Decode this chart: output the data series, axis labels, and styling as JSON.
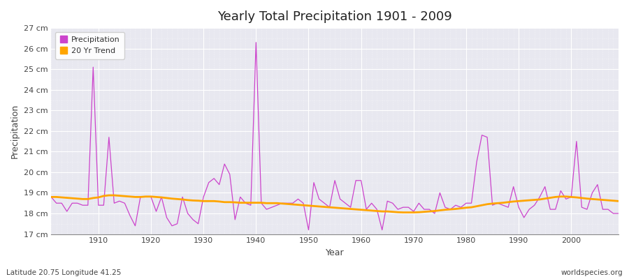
{
  "title": "Yearly Total Precipitation 1901 - 2009",
  "xlabel": "Year",
  "ylabel": "Precipitation",
  "subtitle_left": "Latitude 20.75 Longitude 41.25",
  "subtitle_right": "worldspecies.org",
  "ylim": [
    17,
    27
  ],
  "yticks": [
    17,
    18,
    19,
    20,
    21,
    22,
    23,
    24,
    25,
    26,
    27
  ],
  "ytick_labels": [
    "17 cm",
    "18 cm",
    "19 cm",
    "20 cm",
    "21 cm",
    "22 cm",
    "23 cm",
    "24 cm",
    "25 cm",
    "26 cm",
    "27 cm"
  ],
  "xlim": [
    1901,
    2009
  ],
  "xticks": [
    1910,
    1920,
    1930,
    1940,
    1950,
    1960,
    1970,
    1980,
    1990,
    2000
  ],
  "precip_color": "#cc44cc",
  "trend_color": "#ffa500",
  "fig_bg_color": "#ffffff",
  "plot_bg_color": "#e8e8f0",
  "legend_labels": [
    "Precipitation",
    "20 Yr Trend"
  ],
  "years": [
    1901,
    1902,
    1903,
    1904,
    1905,
    1906,
    1907,
    1908,
    1909,
    1910,
    1911,
    1912,
    1913,
    1914,
    1915,
    1916,
    1917,
    1918,
    1919,
    1920,
    1921,
    1922,
    1923,
    1924,
    1925,
    1926,
    1927,
    1928,
    1929,
    1930,
    1931,
    1932,
    1933,
    1934,
    1935,
    1936,
    1937,
    1938,
    1939,
    1940,
    1941,
    1942,
    1943,
    1944,
    1945,
    1946,
    1947,
    1948,
    1949,
    1950,
    1951,
    1952,
    1953,
    1954,
    1955,
    1956,
    1957,
    1958,
    1959,
    1960,
    1961,
    1962,
    1963,
    1964,
    1965,
    1966,
    1967,
    1968,
    1969,
    1970,
    1971,
    1972,
    1973,
    1974,
    1975,
    1976,
    1977,
    1978,
    1979,
    1980,
    1981,
    1982,
    1983,
    1984,
    1985,
    1986,
    1987,
    1988,
    1989,
    1990,
    1991,
    1992,
    1993,
    1994,
    1995,
    1996,
    1997,
    1998,
    1999,
    2000,
    2001,
    2002,
    2003,
    2004,
    2005,
    2006,
    2007,
    2008,
    2009
  ],
  "precip": [
    18.8,
    18.5,
    18.5,
    18.1,
    18.5,
    18.5,
    18.4,
    18.4,
    25.1,
    18.4,
    18.4,
    21.7,
    18.5,
    18.6,
    18.5,
    17.9,
    17.4,
    18.8,
    18.8,
    18.8,
    18.1,
    18.8,
    17.8,
    17.4,
    17.5,
    18.8,
    18.0,
    17.7,
    17.5,
    18.8,
    19.5,
    19.7,
    19.4,
    20.4,
    19.9,
    17.7,
    18.8,
    18.5,
    18.4,
    26.3,
    18.5,
    18.2,
    18.3,
    18.4,
    18.5,
    18.5,
    18.5,
    18.7,
    18.5,
    17.2,
    19.5,
    18.7,
    18.5,
    18.3,
    19.6,
    18.7,
    18.5,
    18.3,
    19.6,
    19.6,
    18.2,
    18.5,
    18.2,
    17.2,
    18.6,
    18.5,
    18.2,
    18.3,
    18.3,
    18.1,
    18.5,
    18.2,
    18.2,
    18.0,
    19.0,
    18.3,
    18.2,
    18.4,
    18.3,
    18.5,
    18.5,
    20.5,
    21.8,
    21.7,
    18.4,
    18.5,
    18.4,
    18.3,
    19.3,
    18.3,
    17.8,
    18.2,
    18.4,
    18.8,
    19.3,
    18.2,
    18.2,
    19.1,
    18.7,
    18.8,
    21.5,
    18.3,
    18.2,
    19.0,
    19.4,
    18.2,
    18.2,
    18.0,
    18.0
  ],
  "trend": [
    18.8,
    18.8,
    18.78,
    18.76,
    18.74,
    18.72,
    18.7,
    18.7,
    18.75,
    18.78,
    18.85,
    18.88,
    18.88,
    18.86,
    18.84,
    18.82,
    18.8,
    18.8,
    18.82,
    18.82,
    18.8,
    18.78,
    18.75,
    18.72,
    18.7,
    18.68,
    18.65,
    18.63,
    18.62,
    18.6,
    18.6,
    18.6,
    18.58,
    18.55,
    18.55,
    18.54,
    18.52,
    18.52,
    18.52,
    18.52,
    18.52,
    18.5,
    18.5,
    18.5,
    18.48,
    18.46,
    18.44,
    18.42,
    18.4,
    18.38,
    18.36,
    18.34,
    18.32,
    18.3,
    18.28,
    18.26,
    18.24,
    18.22,
    18.2,
    18.18,
    18.16,
    18.14,
    18.12,
    18.1,
    18.1,
    18.08,
    18.06,
    18.05,
    18.05,
    18.05,
    18.06,
    18.08,
    18.1,
    18.12,
    18.15,
    18.18,
    18.2,
    18.22,
    18.25,
    18.28,
    18.3,
    18.35,
    18.4,
    18.45,
    18.48,
    18.5,
    18.52,
    18.55,
    18.58,
    18.6,
    18.62,
    18.64,
    18.66,
    18.68,
    18.72,
    18.76,
    18.8,
    18.82,
    18.82,
    18.8,
    18.78,
    18.75,
    18.72,
    18.7,
    18.68,
    18.66,
    18.64,
    18.62,
    18.6
  ]
}
